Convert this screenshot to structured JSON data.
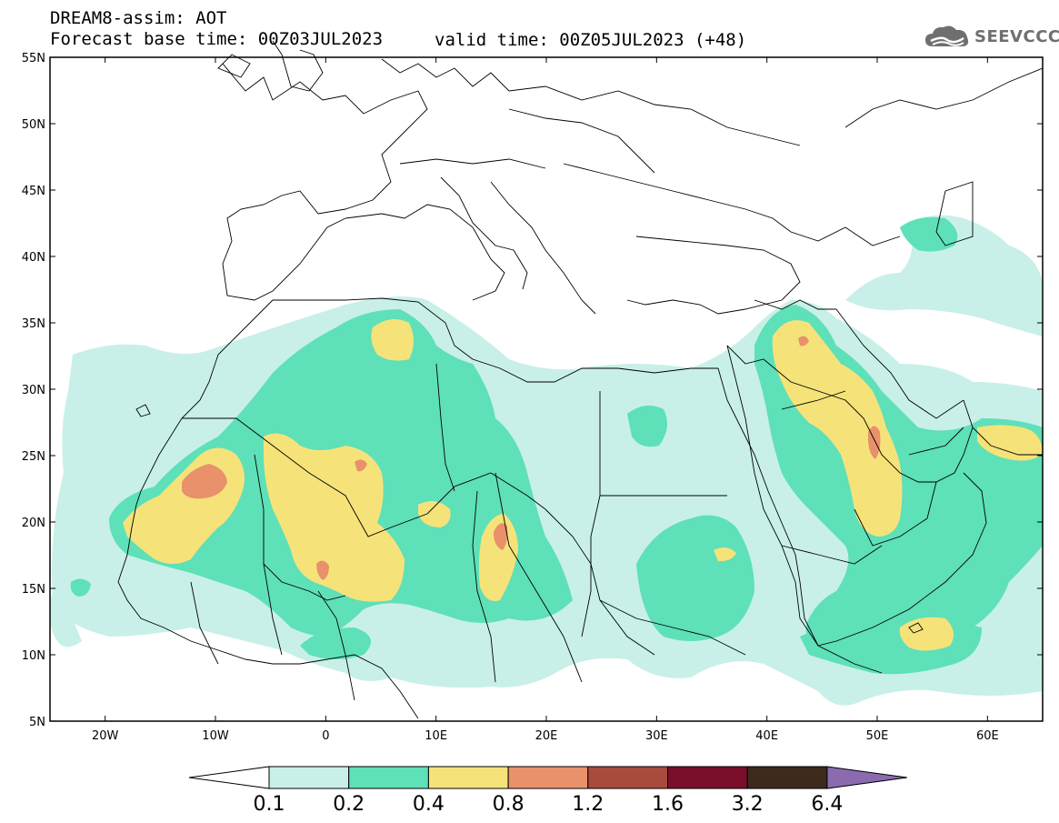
{
  "header": {
    "title_line1": "DREAM8-assim: AOT",
    "title_line2": "Forecast base time: 00Z03JUL2023",
    "valid_time": "valid time: 00Z05JUL2023 (+48)"
  },
  "logo": {
    "text": "SEEVCCC",
    "icon": "cloud-icon"
  },
  "axes": {
    "lat_labels": [
      "55N",
      "50N",
      "45N",
      "40N",
      "35N",
      "30N",
      "25N",
      "20N",
      "15N",
      "10N",
      "5N"
    ],
    "lon_labels": [
      "20W",
      "10W",
      "0",
      "10E",
      "20E",
      "30E",
      "40E",
      "50E",
      "60E"
    ]
  },
  "colorbar": {
    "labels": [
      "0.1",
      "0.2",
      "0.4",
      "0.8",
      "1.2",
      "1.6",
      "3.2",
      "6.4"
    ],
    "colors": [
      "#ffffff",
      "#c8f0e8",
      "#5ee0b8",
      "#f5e37a",
      "#e9916a",
      "#a84b3d",
      "#7a0f2c",
      "#3e2a1c",
      "#8b6bb0"
    ]
  },
  "chart_data": {
    "type": "heatmap",
    "title": "DREAM8-assim: AOT",
    "xlim": [
      -25,
      65
    ],
    "ylim": [
      5,
      55
    ],
    "x_ticks": [
      -20,
      -10,
      0,
      10,
      20,
      30,
      40,
      50,
      60
    ],
    "y_ticks": [
      5,
      10,
      15,
      20,
      25,
      30,
      35,
      40,
      45,
      50,
      55
    ],
    "levels": [
      0.1,
      0.2,
      0.4,
      0.8,
      1.2,
      1.6,
      3.2,
      6.4
    ],
    "grid": false,
    "legend": "bottom"
  }
}
